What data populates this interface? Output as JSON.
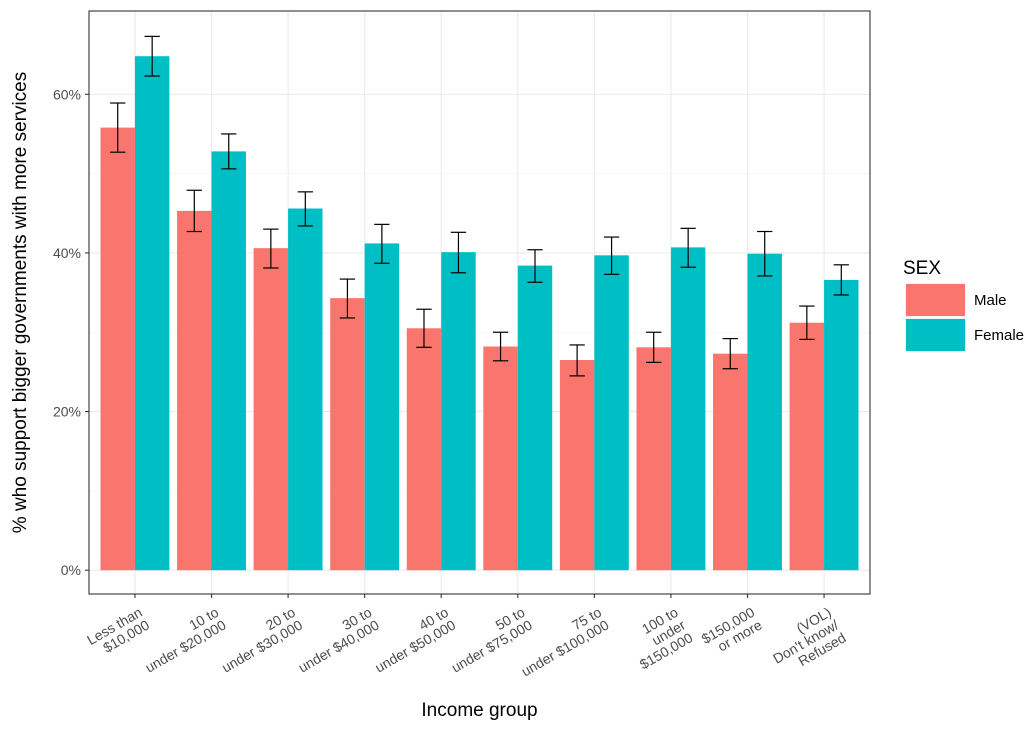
{
  "chart_data": {
    "type": "bar",
    "xlabel": "Income group",
    "ylabel": "% who support bigger governments with more services",
    "ylim": [
      -0.03,
      0.705
    ],
    "yticks": [
      0,
      0.2,
      0.4,
      0.6
    ],
    "ytick_labels": [
      "0%",
      "20%",
      "40%",
      "60%"
    ],
    "grid": true,
    "legend_position": "right",
    "categories": [
      [
        "Less than",
        "$10,000"
      ],
      [
        "10 to",
        "under $20,000"
      ],
      [
        "20 to",
        "under $30,000"
      ],
      [
        "30 to",
        "under $40,000"
      ],
      [
        "40 to",
        "under $50,000"
      ],
      [
        "50 to",
        "under $75,000"
      ],
      [
        "75 to",
        "under $100,000"
      ],
      [
        "100 to",
        "under",
        "$150,000"
      ],
      [
        "$150,000",
        "or more"
      ],
      [
        "(VOL)",
        "Don't know/",
        "Refused"
      ]
    ],
    "legend": {
      "title": "SEX",
      "items": [
        {
          "label": "Male",
          "color": "#F8766D"
        },
        {
          "label": "Female",
          "color": "#00BFC4"
        }
      ]
    },
    "series": [
      {
        "name": "Male",
        "color": "#F8766D",
        "values": [
          0.558,
          0.453,
          0.406,
          0.343,
          0.305,
          0.282,
          0.265,
          0.281,
          0.273,
          0.312
        ],
        "err_low": [
          0.527,
          0.427,
          0.381,
          0.318,
          0.281,
          0.264,
          0.245,
          0.262,
          0.254,
          0.291
        ],
        "err_high": [
          0.589,
          0.479,
          0.43,
          0.367,
          0.329,
          0.3,
          0.284,
          0.3,
          0.292,
          0.333
        ]
      },
      {
        "name": "Female",
        "color": "#00BFC4",
        "values": [
          0.648,
          0.528,
          0.456,
          0.412,
          0.401,
          0.384,
          0.397,
          0.407,
          0.399,
          0.366
        ],
        "err_low": [
          0.623,
          0.506,
          0.434,
          0.387,
          0.375,
          0.363,
          0.373,
          0.382,
          0.371,
          0.347
        ],
        "err_high": [
          0.673,
          0.55,
          0.477,
          0.436,
          0.426,
          0.404,
          0.42,
          0.431,
          0.427,
          0.385
        ]
      }
    ]
  }
}
